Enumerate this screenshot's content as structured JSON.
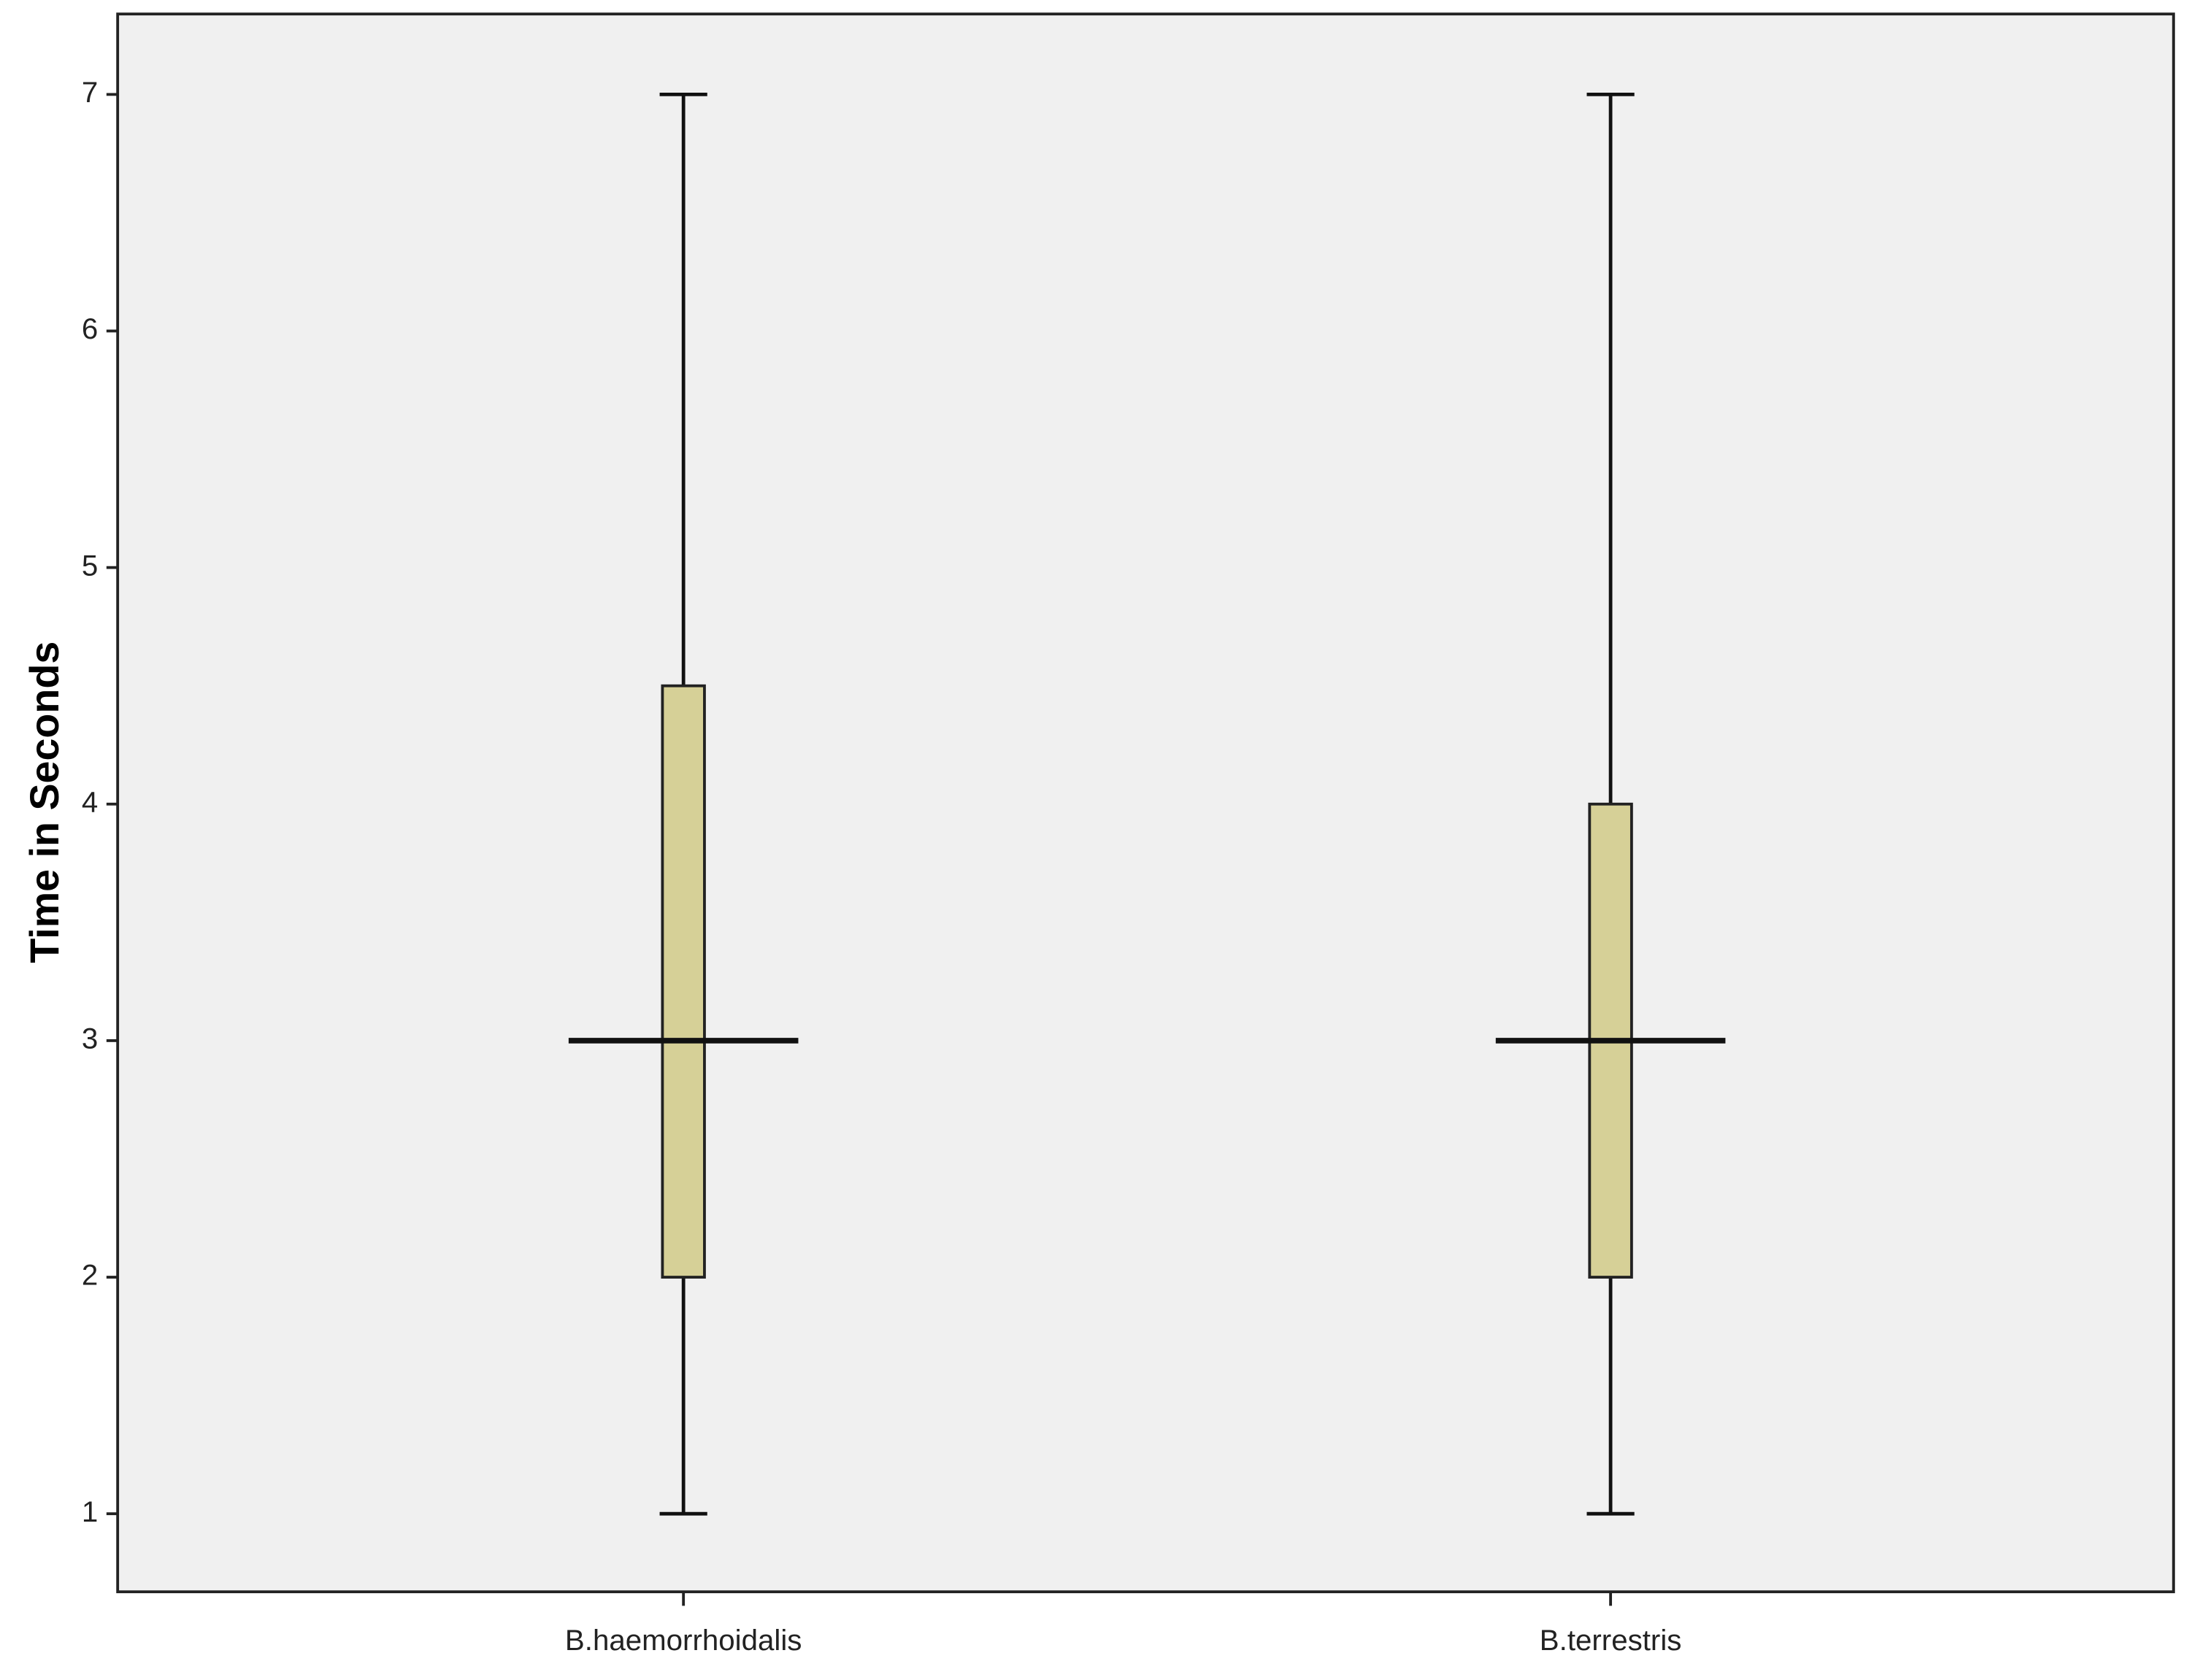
{
  "chart_data": {
    "type": "box",
    "ylabel": "Time in Seconds",
    "categories": [
      "B.haemorrhoidalis",
      "B.terrestris"
    ],
    "min": [
      1,
      1
    ],
    "q1": [
      2,
      2
    ],
    "median": [
      3,
      3
    ],
    "q3": [
      4.5,
      4
    ],
    "max": [
      7,
      7
    ],
    "color": "#d6d097",
    "background": "#f0f0f0",
    "ylim": [
      0.67,
      7.34
    ],
    "yticks": [
      1,
      2,
      3,
      4,
      5,
      6,
      7
    ],
    "grid": false
  }
}
